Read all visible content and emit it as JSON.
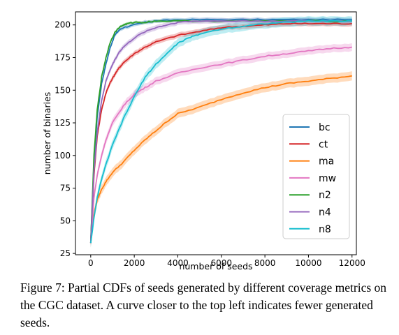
{
  "chart_data": {
    "type": "line",
    "xlabel": "number of seeds",
    "ylabel": "number of binaries",
    "xlim": [
      -700,
      12200
    ],
    "ylim": [
      24,
      210
    ],
    "xticks": [
      0,
      2000,
      4000,
      6000,
      8000,
      10000,
      12000
    ],
    "yticks": [
      25,
      50,
      75,
      100,
      125,
      150,
      175,
      200
    ],
    "grid": false,
    "legend_position": "lower-right",
    "confidence_bands": true,
    "series": [
      {
        "name": "bc",
        "color": "#1f77b4",
        "x": [
          0,
          150,
          300,
          500,
          700,
          900,
          1100,
          1300,
          1500,
          2000,
          2500,
          3000,
          4000,
          6000,
          8000,
          10000,
          12000
        ],
        "y": [
          33,
          95,
          130,
          155,
          170,
          183,
          192,
          196,
          198,
          200,
          202,
          203,
          204,
          204,
          204,
          204,
          204
        ],
        "band": 1.5
      },
      {
        "name": "ct",
        "color": "#d62728",
        "x": [
          0,
          150,
          300,
          500,
          700,
          900,
          1100,
          1300,
          1500,
          2000,
          2500,
          3000,
          4000,
          5000,
          6000,
          7000,
          8000,
          9000,
          10000,
          11000,
          12000
        ],
        "y": [
          33,
          85,
          115,
          135,
          148,
          156,
          162,
          167,
          171,
          178,
          183,
          187,
          192,
          195,
          198,
          199,
          200,
          201,
          201,
          201,
          201
        ],
        "band": 2
      },
      {
        "name": "ma",
        "color": "#ff7f0e",
        "x": [
          0,
          150,
          300,
          500,
          700,
          1000,
          1500,
          2000,
          2500,
          3000,
          3500,
          4000,
          5000,
          6000,
          7000,
          8000,
          9000,
          10000,
          11000,
          12000
        ],
        "y": [
          33,
          55,
          66,
          74,
          80,
          87,
          95,
          104,
          112,
          119,
          126,
          132,
          137,
          143,
          148,
          152,
          155,
          157,
          159,
          161
        ],
        "band": 3.5
      },
      {
        "name": "mw",
        "color": "#e377c2",
        "x": [
          0,
          150,
          300,
          500,
          700,
          1000,
          1500,
          2000,
          2500,
          3000,
          4000,
          5000,
          6000,
          7000,
          8000,
          9000,
          10000,
          11000,
          12000
        ],
        "y": [
          33,
          68,
          85,
          100,
          112,
          125,
          138,
          147,
          152,
          157,
          163,
          167,
          170,
          173,
          176,
          178,
          180,
          182,
          183
        ],
        "band": 3
      },
      {
        "name": "n2",
        "color": "#2ca02c",
        "x": [
          0,
          150,
          300,
          500,
          700,
          900,
          1100,
          1300,
          1500,
          1700,
          2000,
          2500,
          3000,
          4000,
          6000,
          8000,
          10000,
          12000
        ],
        "y": [
          33,
          100,
          135,
          160,
          175,
          187,
          194,
          198,
          200,
          201,
          202,
          202,
          203,
          203,
          203,
          203,
          203,
          203
        ],
        "band": 1
      },
      {
        "name": "n4",
        "color": "#9467bd",
        "x": [
          0,
          150,
          300,
          500,
          700,
          900,
          1100,
          1300,
          1500,
          2000,
          2500,
          3000,
          3500,
          4000,
          5000,
          6000,
          8000,
          10000,
          12000
        ],
        "y": [
          33,
          88,
          118,
          142,
          157,
          166,
          173,
          179,
          183,
          190,
          195,
          198,
          200,
          202,
          203,
          203,
          203,
          203,
          203
        ],
        "band": 2
      },
      {
        "name": "n8",
        "color": "#17becf",
        "x": [
          0,
          150,
          300,
          500,
          700,
          1000,
          1500,
          2000,
          2500,
          3000,
          3500,
          4000,
          4500,
          5000,
          6000,
          7000,
          8000,
          9000,
          10000,
          11000,
          12000
        ],
        "y": [
          33,
          52,
          68,
          82,
          93,
          108,
          128,
          145,
          160,
          170,
          178,
          186,
          190,
          193,
          197,
          199,
          201,
          202,
          203,
          203,
          203
        ],
        "band": 3.5
      }
    ]
  },
  "caption": "Figure 7: Partial CDFs of seeds generated by different coverage metrics on the CGC dataset. A curve closer to the top left indicates fewer generated seeds."
}
